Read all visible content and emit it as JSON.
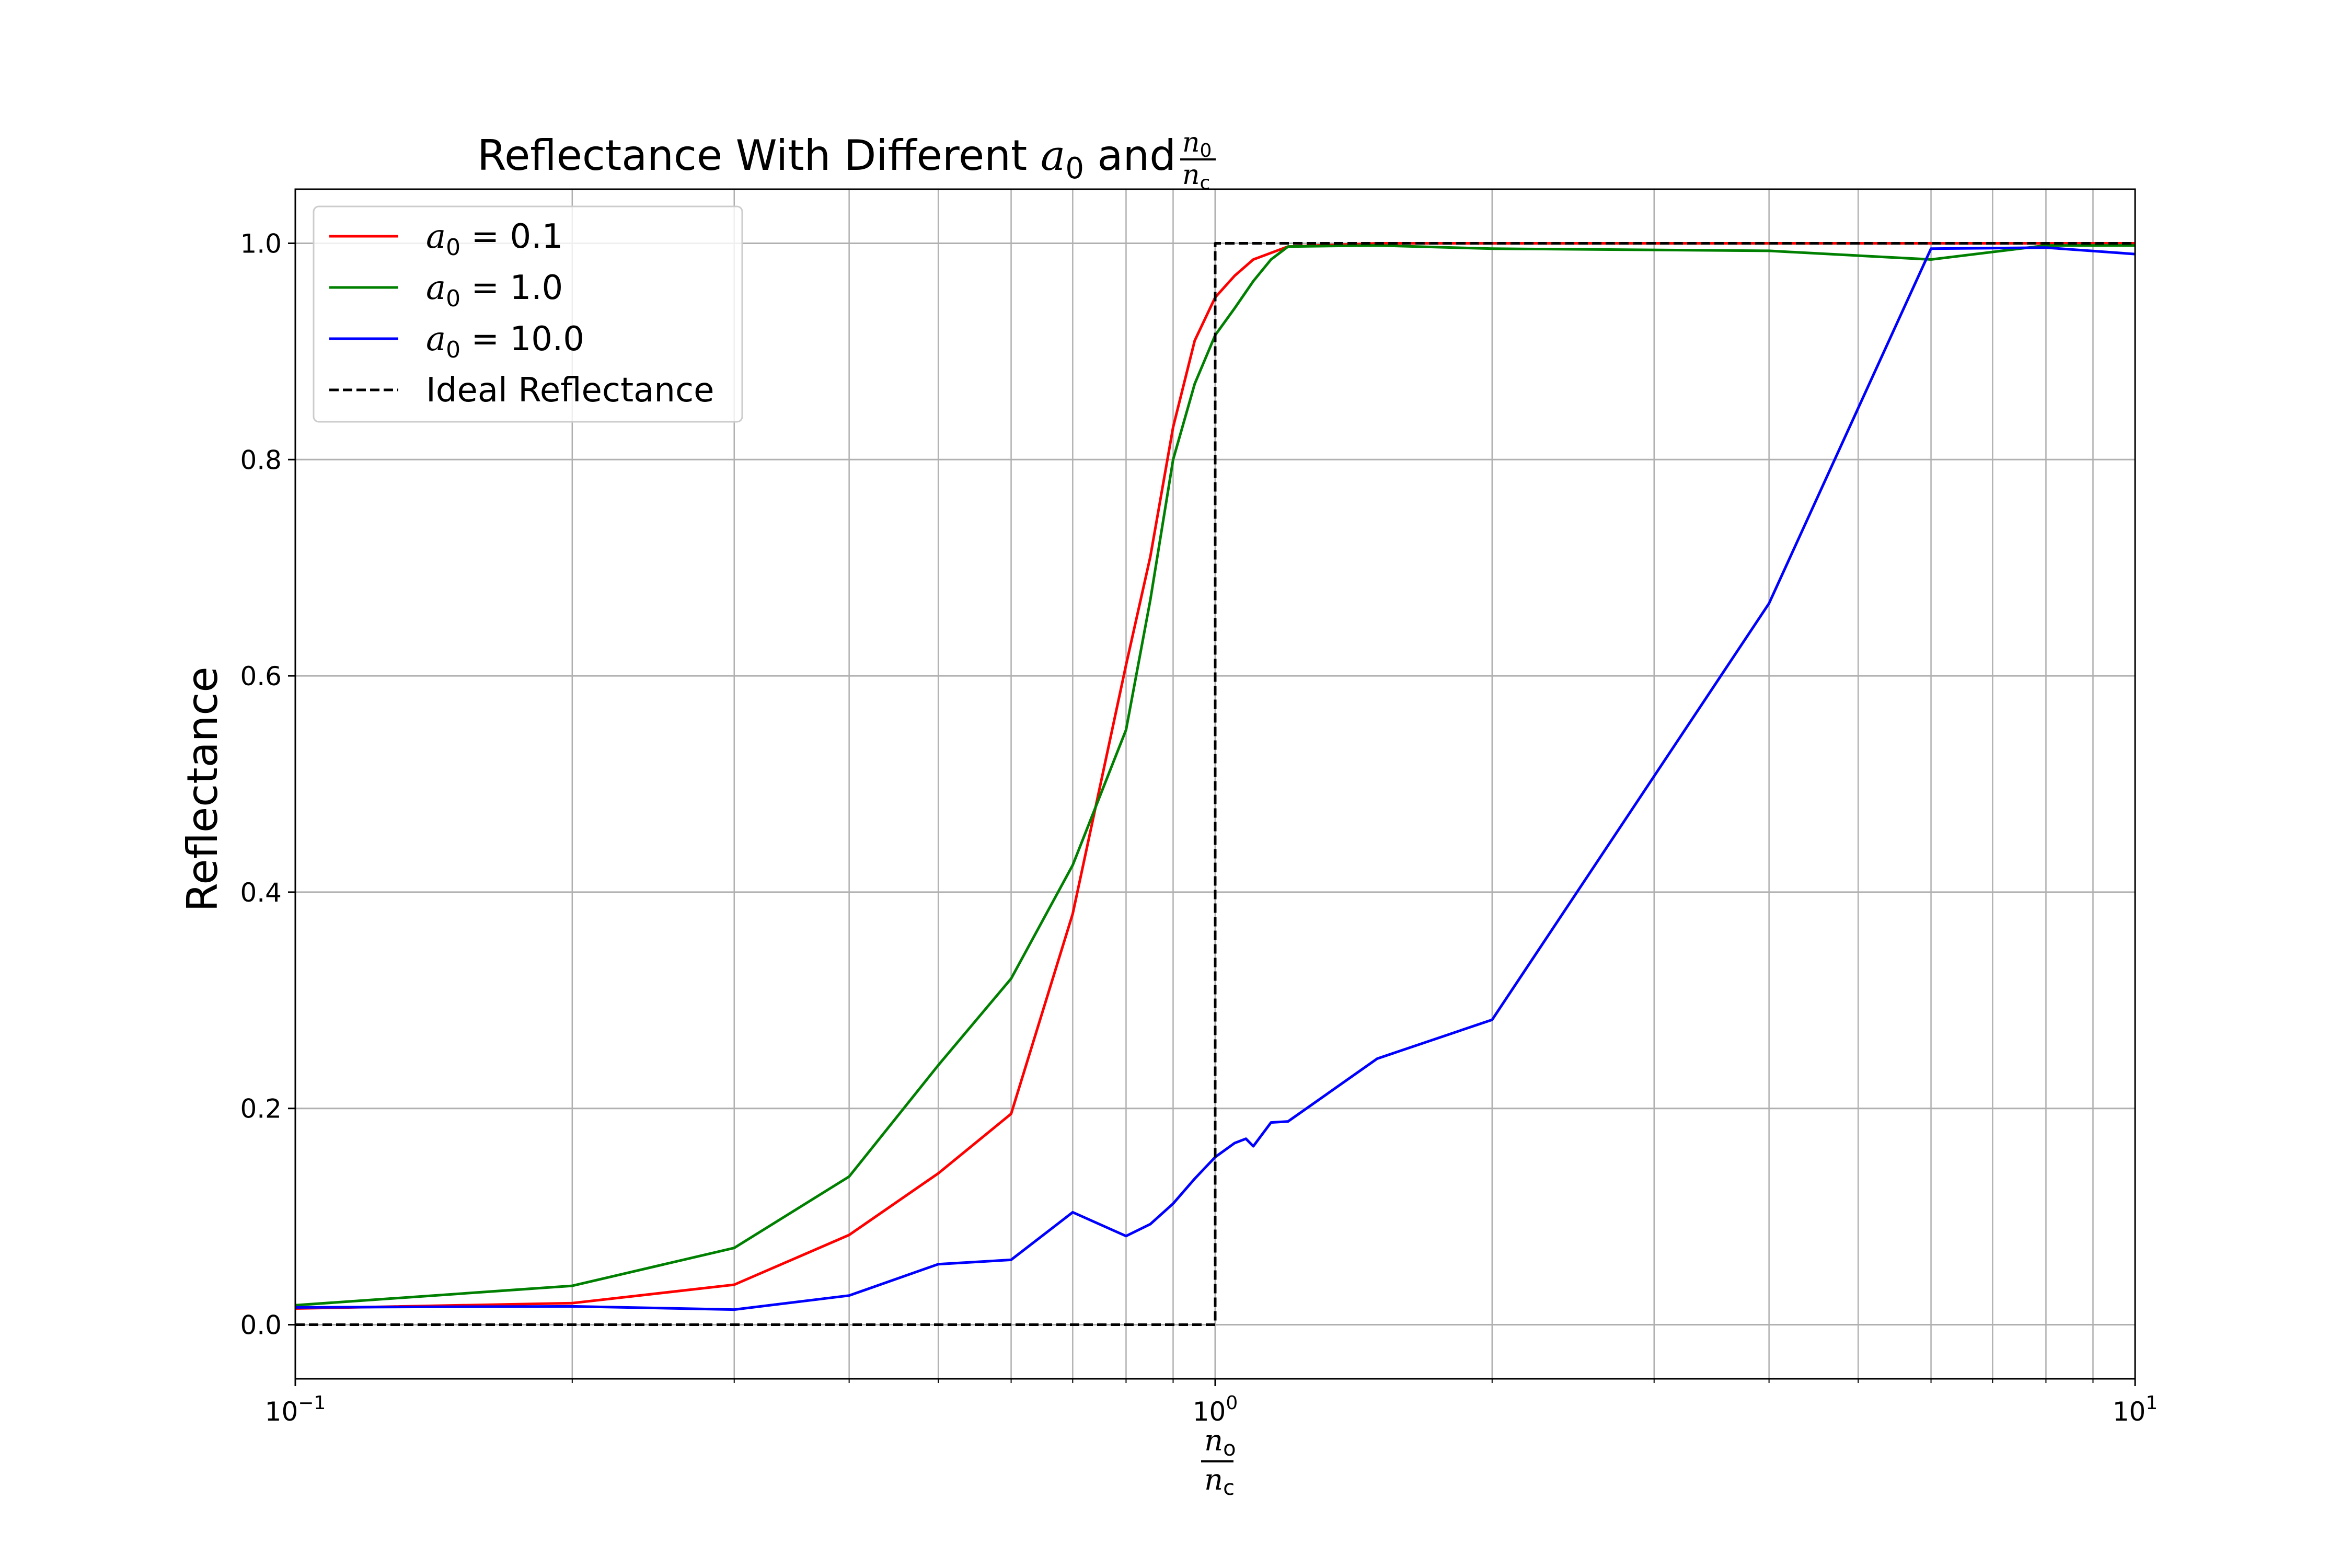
{
  "chart_data": {
    "type": "line",
    "title": {
      "text_before": "Reflectance With Different ",
      "a_symbol": "a",
      "a_subscript": "0",
      "text_and": " and ",
      "frac_num": "n",
      "frac_num_sub": "0",
      "frac_den": "n",
      "frac_den_sub": "c"
    },
    "ylabel": "Reflectance",
    "xlabel": {
      "num": "n",
      "num_sub": "o",
      "den": "n",
      "den_sub": "c"
    },
    "xscale": "log",
    "xlim": [
      0.1,
      10
    ],
    "ylim": [
      -0.05,
      1.05
    ],
    "x_ticks": [
      {
        "value": 0.1,
        "base": "10",
        "exp": "−1"
      },
      {
        "value": 1,
        "base": "10",
        "exp": "0"
      },
      {
        "value": 10,
        "base": "10",
        "exp": "1"
      }
    ],
    "y_ticks": [
      {
        "value": 0.0,
        "label": "0.0"
      },
      {
        "value": 0.2,
        "label": "0.2"
      },
      {
        "value": 0.4,
        "label": "0.4"
      },
      {
        "value": 0.6,
        "label": "0.6"
      },
      {
        "value": 0.8,
        "label": "0.8"
      },
      {
        "value": 1.0,
        "label": "1.0"
      }
    ],
    "grid": true,
    "legend_position": "upper-left",
    "series": [
      {
        "name": "a0 = 0.1",
        "legend_symbol": "a",
        "legend_sub": "0",
        "legend_value": " = 0.1",
        "color": "#ff0000",
        "dash": "solid",
        "x": [
          0.1,
          0.2,
          0.3,
          0.4,
          0.5,
          0.6,
          0.7,
          0.8,
          0.85,
          0.9,
          0.95,
          1.0,
          1.05,
          1.1,
          1.2,
          1.5,
          2,
          4,
          6,
          8,
          10
        ],
        "y": [
          0.015,
          0.02,
          0.037,
          0.083,
          0.14,
          0.195,
          0.38,
          0.61,
          0.71,
          0.83,
          0.91,
          0.95,
          0.97,
          0.985,
          0.997,
          1.0,
          1.0,
          1.0,
          1.0,
          1.0,
          1.0
        ]
      },
      {
        "name": "a0 = 1.0",
        "legend_symbol": "a",
        "legend_sub": "0",
        "legend_value": " = 1.0",
        "color": "#008000",
        "dash": "solid",
        "x": [
          0.1,
          0.2,
          0.3,
          0.4,
          0.5,
          0.6,
          0.7,
          0.8,
          0.85,
          0.9,
          0.95,
          1.0,
          1.05,
          1.1,
          1.15,
          1.2,
          1.5,
          2,
          4,
          6,
          8,
          10
        ],
        "y": [
          0.018,
          0.036,
          0.071,
          0.137,
          0.24,
          0.32,
          0.425,
          0.55,
          0.67,
          0.8,
          0.87,
          0.915,
          0.94,
          0.965,
          0.985,
          0.997,
          0.998,
          0.995,
          0.993,
          0.985,
          0.998,
          0.998
        ]
      },
      {
        "name": "a0 = 10.0",
        "legend_symbol": "a",
        "legend_sub": "0",
        "legend_value": " = 10.0",
        "color": "#0000ff",
        "dash": "solid",
        "x": [
          0.1,
          0.2,
          0.3,
          0.4,
          0.5,
          0.6,
          0.7,
          0.8,
          0.85,
          0.9,
          0.95,
          1.0,
          1.05,
          1.08,
          1.1,
          1.15,
          1.2,
          1.5,
          2,
          4,
          6,
          8,
          10
        ],
        "y": [
          0.016,
          0.017,
          0.014,
          0.027,
          0.056,
          0.06,
          0.104,
          0.082,
          0.093,
          0.112,
          0.135,
          0.155,
          0.168,
          0.172,
          0.165,
          0.187,
          0.188,
          0.246,
          0.282,
          0.667,
          0.995,
          0.996,
          0.99
        ]
      },
      {
        "name": "Ideal Reflectance",
        "legend_label": "Ideal Reflectance",
        "color": "#000000",
        "dash": "dashed",
        "x": [
          0.1,
          1.0,
          1.0,
          10
        ],
        "y": [
          0.0,
          0.0,
          1.0,
          1.0
        ]
      }
    ]
  }
}
